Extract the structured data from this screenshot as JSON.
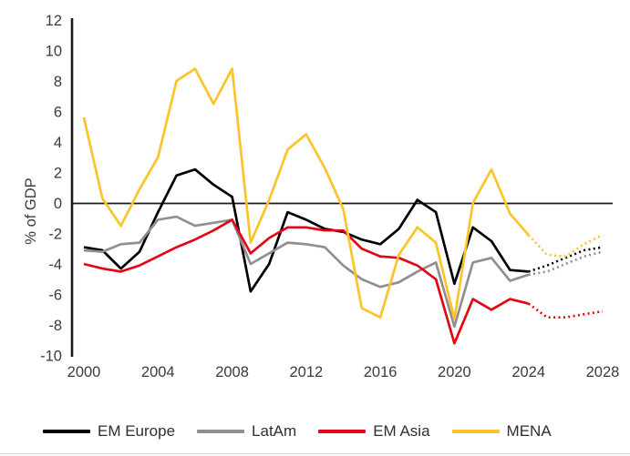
{
  "chart_data": {
    "type": "line",
    "title": "",
    "xlabel": "",
    "ylabel": "% of GDP",
    "grid": false,
    "legend_position": "bottom",
    "ylim": [
      -10,
      12
    ],
    "y_ticks": [
      12,
      10,
      8,
      6,
      4,
      2,
      0,
      -2,
      -4,
      -6,
      -8,
      -10
    ],
    "x_tick_years": [
      2000,
      2004,
      2008,
      2012,
      2016,
      2020,
      2024,
      2028
    ],
    "x": [
      2000,
      2001,
      2002,
      2003,
      2004,
      2005,
      2006,
      2007,
      2008,
      2009,
      2010,
      2011,
      2012,
      2013,
      2014,
      2015,
      2016,
      2017,
      2018,
      2019,
      2020,
      2021,
      2022,
      2023,
      2024,
      2025,
      2026,
      2027,
      2028
    ],
    "series": [
      {
        "name": "EM Europe",
        "color": "#000000",
        "solid_until": 2024,
        "values": [
          -2.9,
          -3.1,
          -4.3,
          -3.2,
          -0.6,
          1.8,
          2.2,
          1.2,
          0.4,
          -5.8,
          -4.0,
          -0.6,
          -1.1,
          -1.7,
          -1.9,
          -2.4,
          -2.7,
          -1.7,
          0.2,
          -0.6,
          -5.3,
          -1.6,
          -2.5,
          -4.4,
          -4.5,
          -4.1,
          -3.6,
          -3.1,
          -2.9
        ]
      },
      {
        "name": "LatAm",
        "color": "#8f8f8f",
        "solid_until": 2024,
        "values": [
          -3.1,
          -3.2,
          -2.7,
          -2.6,
          -1.1,
          -0.9,
          -1.5,
          -1.3,
          -1.1,
          -4.0,
          -3.3,
          -2.6,
          -2.7,
          -2.9,
          -4.1,
          -5.0,
          -5.5,
          -5.2,
          -4.5,
          -3.9,
          -8.1,
          -3.9,
          -3.6,
          -5.1,
          -4.7,
          -4.5,
          -4.0,
          -3.5,
          -3.2
        ]
      },
      {
        "name": "EM Asia",
        "color": "#e30613",
        "solid_until": 2024,
        "values": [
          -4.0,
          -4.3,
          -4.5,
          -4.1,
          -3.5,
          -2.9,
          -2.4,
          -1.8,
          -1.1,
          -3.3,
          -2.3,
          -1.6,
          -1.6,
          -1.8,
          -1.8,
          -3.0,
          -3.5,
          -3.6,
          -4.1,
          -5.0,
          -9.2,
          -6.3,
          -7.0,
          -6.3,
          -6.6,
          -7.5,
          -7.5,
          -7.3,
          -7.1
        ]
      },
      {
        "name": "MENA",
        "color": "#fcc32b",
        "solid_until": 2024,
        "values": [
          5.6,
          0.3,
          -1.5,
          0.9,
          3.0,
          8.0,
          8.8,
          6.5,
          8.8,
          -2.6,
          0.2,
          3.5,
          4.5,
          2.3,
          -0.4,
          -6.9,
          -7.5,
          -3.4,
          -1.6,
          -2.6,
          -7.6,
          0.0,
          2.2,
          -0.7,
          -2.1,
          -3.4,
          -3.5,
          -2.7,
          -2.1
        ]
      }
    ]
  }
}
